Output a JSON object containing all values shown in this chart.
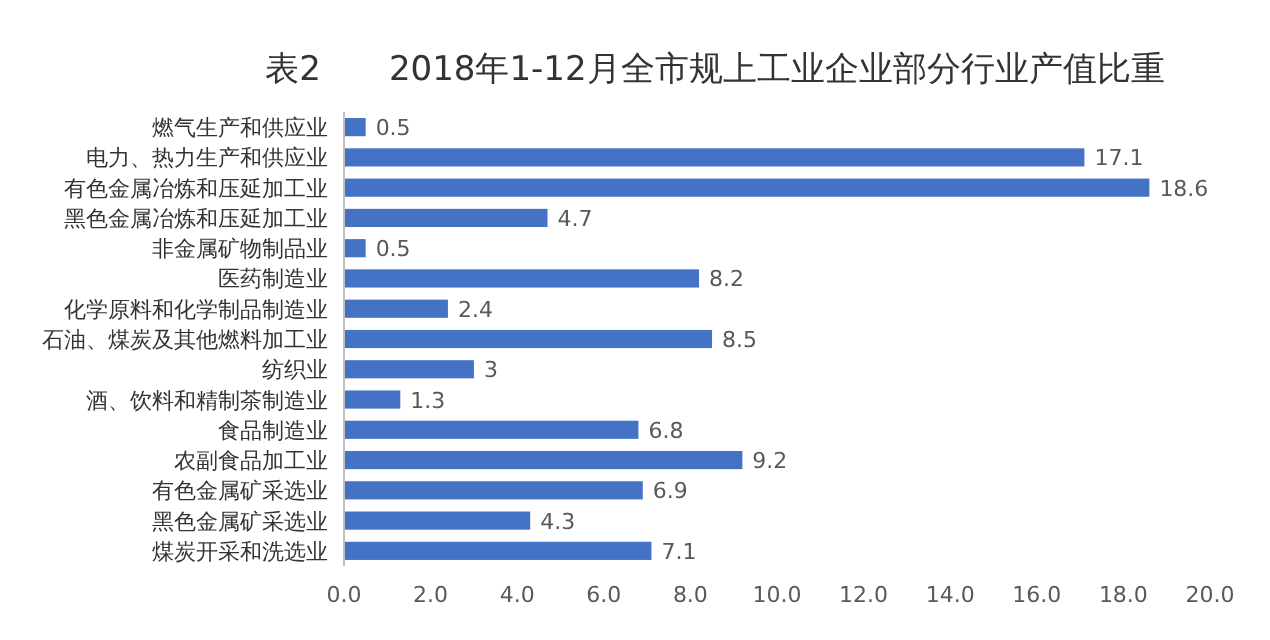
{
  "chart_data": {
    "type": "bar",
    "orientation": "horizontal",
    "title": "表2　　2018年1-12月全市规上工业企业部分行业产值比重",
    "categories": [
      "燃气生产和供应业",
      "电力、热力生产和供应业",
      "有色金属冶炼和压延加工业",
      "黑色金属冶炼和压延加工业",
      "非金属矿物制品业",
      "医药制造业",
      "化学原料和化学制品制造业",
      "石油、煤炭及其他燃料加工业",
      "纺织业",
      "酒、饮料和精制茶制造业",
      "食品制造业",
      "农副食品加工业",
      "有色金属矿采选业",
      "黑色金属矿采选业",
      "煤炭开采和洗选业"
    ],
    "values": [
      0.5,
      17.1,
      18.6,
      4.7,
      0.5,
      8.2,
      2.4,
      8.5,
      3,
      1.3,
      6.8,
      9.2,
      6.9,
      4.3,
      7.1
    ],
    "color": "#4472c4",
    "xlim": [
      0,
      20
    ],
    "xticks": [
      {
        "value": 0,
        "label": "0.0"
      },
      {
        "value": 2,
        "label": "2.0"
      },
      {
        "value": 4,
        "label": "4.0"
      },
      {
        "value": 6,
        "label": "6.0"
      },
      {
        "value": 8,
        "label": "8.0"
      },
      {
        "value": 10,
        "label": "10.0"
      },
      {
        "value": 12,
        "label": "12.0"
      },
      {
        "value": 14,
        "label": "14.0"
      },
      {
        "value": 16,
        "label": "16.0"
      },
      {
        "value": 18,
        "label": "18.0"
      },
      {
        "value": 20,
        "label": "20.0"
      }
    ],
    "data_labels": true
  }
}
